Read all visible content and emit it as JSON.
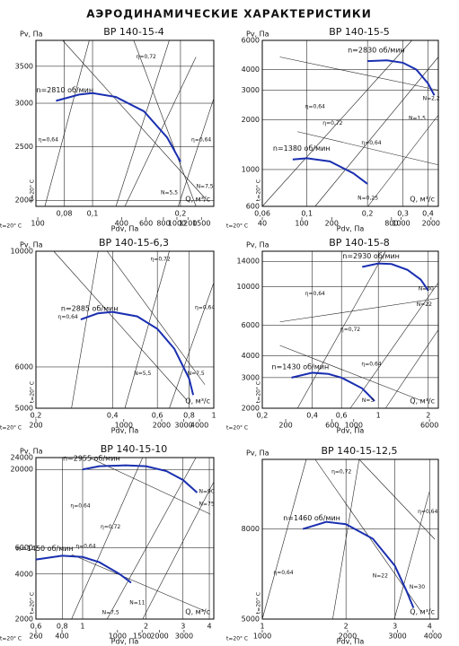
{
  "page_title": "АЭРОДИНАМИЧЕСКИЕ ХАРАКТЕРИСТИКИ",
  "chart_data": [
    {
      "type": "line",
      "title": "ВР 140-15-4",
      "ylabel": "Pv, Па",
      "xlabel": "Q, м³/с",
      "x2label": "Pdv, Па",
      "note": "t=20° C",
      "xscale": "log",
      "yscale": "log",
      "grid": true,
      "xlim": [
        0.064,
        0.26
      ],
      "ylim": [
        1950,
        3900
      ],
      "x2lim": [
        97,
        1840
      ],
      "xticks": [
        {
          "value": 0.08,
          "label": "0,08"
        },
        {
          "value": 0.1,
          "label": "0,1"
        },
        {
          "value": 0.2,
          "label": "0,2"
        }
      ],
      "yticks": [
        2000,
        2500,
        3000,
        3500
      ],
      "x2ticks": [
        100,
        400,
        600,
        800,
        1000,
        1200,
        1500
      ],
      "series": [
        {
          "name": "n=2810 об/мин",
          "color": "#1a2fb0",
          "x": [
            0.075,
            0.09,
            0.1,
            0.12,
            0.15,
            0.18,
            0.2
          ],
          "values": [
            3030,
            3110,
            3130,
            3080,
            2900,
            2600,
            2350
          ]
        }
      ],
      "annotations": [
        "η=0,72",
        "η=0,64",
        "η=0,64",
        "N=5,5",
        "N=7,5"
      ]
    },
    {
      "type": "line",
      "title": "ВР 140-15-5",
      "ylabel": "Pv, Па",
      "xlabel": "Q, м³/с",
      "x2label": "Pdv, Па",
      "note": "t=20° C",
      "xscale": "log",
      "yscale": "log",
      "grid": true,
      "xlim": [
        0.06,
        0.45
      ],
      "ylim": [
        600,
        6000
      ],
      "x2lim": [
        40,
        2370
      ],
      "xticks": [
        {
          "value": 0.06,
          "label": "0,06"
        },
        {
          "value": 0.1,
          "label": "0,1"
        },
        {
          "value": 0.2,
          "label": "0,2"
        },
        {
          "value": 0.3,
          "label": "0,3"
        },
        {
          "value": 0.4,
          "label": "0,4"
        }
      ],
      "yticks": [
        600,
        1000,
        2000,
        3000,
        4000,
        6000
      ],
      "x2ticks": [
        40,
        100,
        200,
        800,
        1000,
        2000
      ],
      "series": [
        {
          "name": "n=2830 об/мин",
          "color": "#1a2fb0",
          "x": [
            0.2,
            0.25,
            0.3,
            0.35,
            0.4,
            0.43
          ],
          "values": [
            4500,
            4550,
            4400,
            4000,
            3300,
            2800
          ]
        },
        {
          "name": "n=1380 об/мин",
          "color": "#1a2fb0",
          "x": [
            0.085,
            0.1,
            0.13,
            0.17,
            0.2
          ],
          "values": [
            1150,
            1170,
            1120,
            950,
            820
          ]
        }
      ],
      "annotations": [
        "η=0,64",
        "η=0,72",
        "η=0,64",
        "N=2,2",
        "N=1,5",
        "N=0,25"
      ]
    },
    {
      "type": "line",
      "title": "ВР 140-15-6,3",
      "ylabel": "Pv, Па",
      "xlabel": "Q, м³/с",
      "x2label": "Pdv, Па",
      "note": "t=20° C",
      "xscale": "log",
      "yscale": "log",
      "grid": true,
      "xlim": [
        0.2,
        1
      ],
      "ylim": [
        5000,
        10000
      ],
      "x2lim": [
        200,
        5200
      ],
      "xticks": [
        {
          "value": 0.2,
          "label": "0,2"
        },
        {
          "value": 0.4,
          "label": "0,4"
        },
        {
          "value": 0.6,
          "label": "0,6"
        },
        {
          "value": 0.8,
          "label": "0,8"
        },
        1
      ],
      "yticks": [
        5000,
        6000,
        10000
      ],
      "x2ticks": [
        200,
        1000,
        2000,
        3000,
        4000
      ],
      "series": [
        {
          "name": "n=2885 об/мин",
          "color": "#1a2fb0",
          "x": [
            0.3,
            0.35,
            0.4,
            0.5,
            0.6,
            0.7,
            0.8,
            0.83
          ],
          "values": [
            7400,
            7600,
            7650,
            7500,
            7100,
            6500,
            5700,
            5300
          ]
        }
      ],
      "annotations": [
        "η=0,72",
        "η=0,64",
        "η=0,64",
        "N=5,5",
        "N=7,5"
      ]
    },
    {
      "type": "line",
      "title": "ВР 140-15-8",
      "ylabel": "Pv, Па",
      "xlabel": "Q, м³/с",
      "x2label": "Pdv, Па",
      "note": "t=20° C",
      "xscale": "log",
      "yscale": "log",
      "grid": true,
      "xlim": [
        0.2,
        2.3
      ],
      "ylim": [
        2000,
        16000
      ],
      "x2lim": [
        115,
        7400
      ],
      "xticks": [
        {
          "value": 0.2,
          "label": "0,2"
        },
        {
          "value": 0.4,
          "label": "0,4"
        },
        {
          "value": 0.6,
          "label": "0,6"
        },
        1,
        2
      ],
      "yticks": [
        2000,
        3000,
        4000,
        6000,
        10000,
        14000
      ],
      "x2ticks": [
        200,
        600,
        1000,
        6000
      ],
      "series": [
        {
          "name": "n=2930 об/мин",
          "color": "#1a2fb0",
          "x": [
            0.8,
            1,
            1.2,
            1.5,
            1.8,
            2
          ],
          "values": [
            13000,
            13600,
            13500,
            12500,
            11000,
            9500
          ]
        },
        {
          "name": "n=1430 об/мин",
          "color": "#1a2fb0",
          "x": [
            0.3,
            0.4,
            0.5,
            0.6,
            0.8,
            0.95
          ],
          "values": [
            3000,
            3200,
            3150,
            3000,
            2600,
            2200
          ]
        }
      ],
      "annotations": [
        "η=0,64",
        "η=0,72",
        "η=0,64",
        "N=30",
        "N=22",
        "N=3"
      ]
    },
    {
      "type": "line",
      "title": "ВР 140-15-10",
      "ylabel": "Pv, Па",
      "xlabel": "Q, м³/с",
      "x2label": "Pdv, Па",
      "note": "t=20° C",
      "xscale": "log",
      "yscale": "log",
      "grid": true,
      "xlim": [
        0.6,
        4.2
      ],
      "ylim": [
        2000,
        24000
      ],
      "x2lim": [
        260,
        4900
      ],
      "xticks": [
        {
          "value": 0.6,
          "label": "0,6"
        },
        {
          "value": 0.8,
          "label": "0,8"
        },
        1,
        2,
        3,
        4
      ],
      "yticks": [
        2000,
        4000,
        6000,
        20000,
        24000
      ],
      "x2ticks": [
        260,
        400,
        1000,
        1500,
        2000,
        3000
      ],
      "series": [
        {
          "name": "n=2955 об/мин",
          "color": "#1a2fb0",
          "x": [
            1,
            1.2,
            1.6,
            2,
            2.5,
            3,
            3.5
          ],
          "values": [
            20000,
            21000,
            21300,
            21000,
            19500,
            17000,
            14000
          ]
        },
        {
          "name": "n=1450 об/мин",
          "color": "#1a2fb0",
          "x": [
            0.6,
            0.8,
            1,
            1.2,
            1.5,
            1.7
          ],
          "values": [
            5000,
            5300,
            5200,
            4800,
            4000,
            3500
          ]
        }
      ],
      "annotations": [
        "η=0,64",
        "η=0,72",
        "η=0,64",
        "N=90",
        "N=75",
        "N=11",
        "N=7,5"
      ]
    },
    {
      "type": "line",
      "title": "ВР 140-15-12,5",
      "ylabel": "Pv, Па",
      "xlabel": "Q, м³/с",
      "x2label": "Pdv, Па",
      "note": "t=20° C",
      "xscale": "log",
      "yscale": "log",
      "grid": true,
      "xlim": [
        1,
        4.3
      ],
      "ylim": [
        5000,
        11500
      ],
      "x2lim": [
        1000,
        4180
      ],
      "xticks": [
        1,
        2,
        3,
        4
      ],
      "yticks": [
        5000,
        8000
      ],
      "x2ticks": [
        1000,
        2000,
        3000,
        4000
      ],
      "series": [
        {
          "name": "n=1460 об/мин",
          "color": "#1a2fb0",
          "x": [
            1.4,
            1.7,
            2,
            2.5,
            3,
            3.3,
            3.5
          ],
          "values": [
            8000,
            8300,
            8200,
            7600,
            6600,
            5800,
            5300
          ]
        }
      ],
      "annotations": [
        "η=0,72",
        "η=0,64",
        "η=0,64",
        "N=22",
        "N=30"
      ]
    }
  ]
}
